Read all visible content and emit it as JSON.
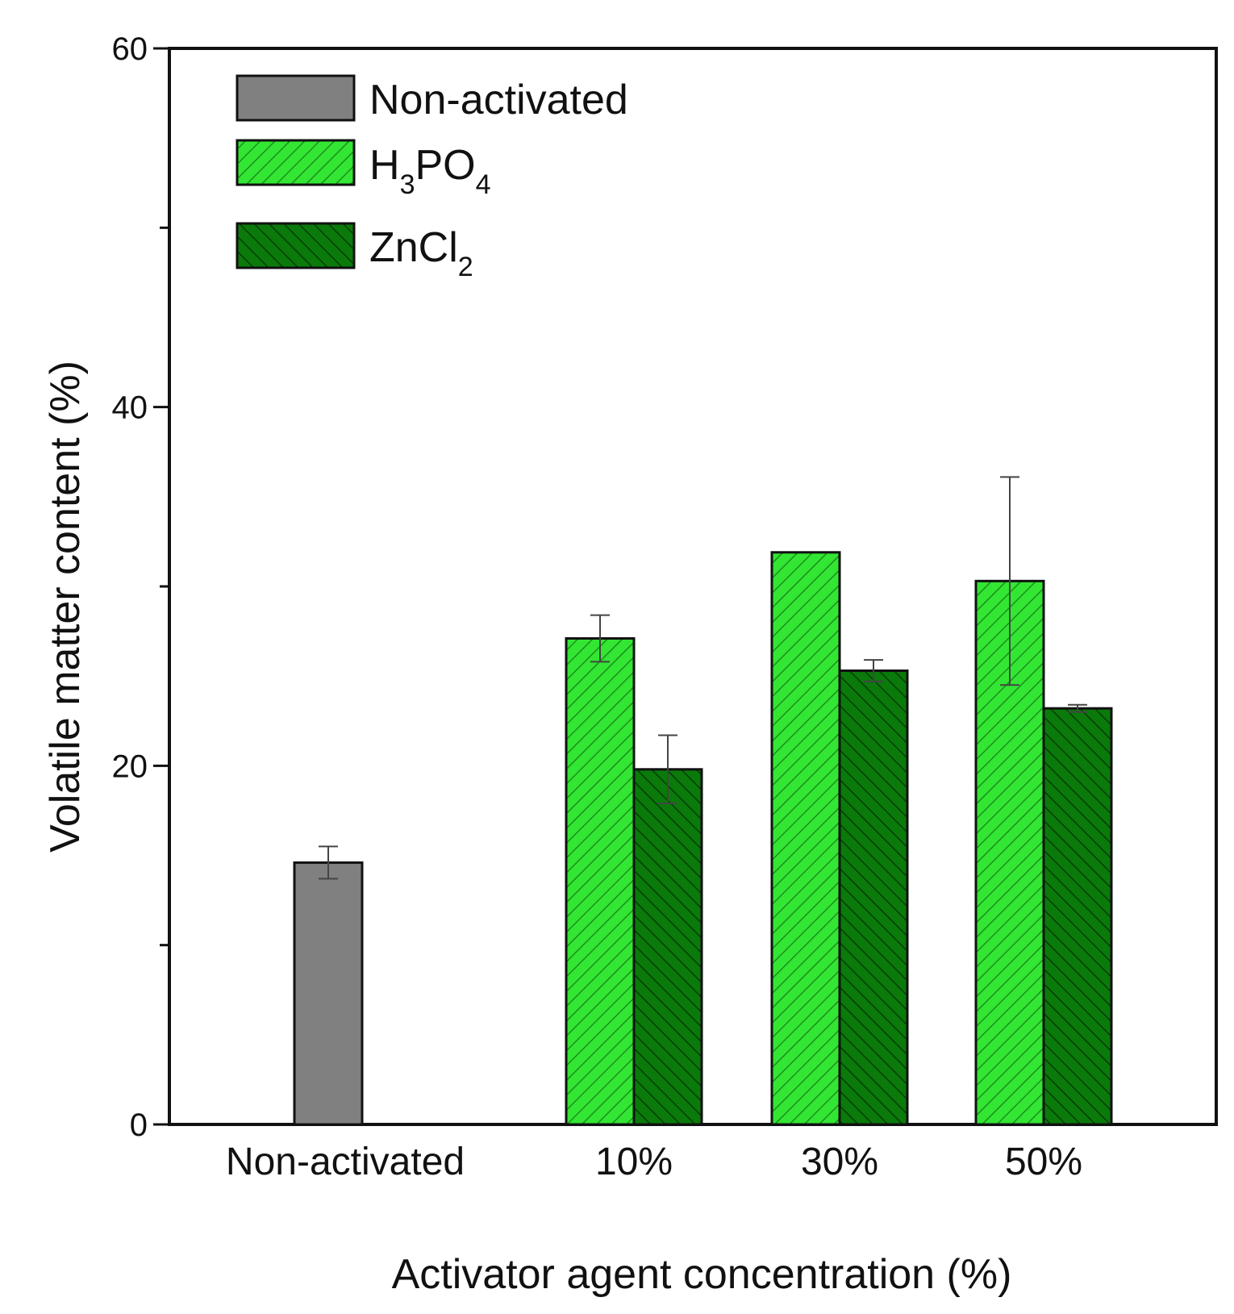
{
  "chart_data": {
    "type": "bar",
    "title": "",
    "xlabel": "Activator agent concentration (%)",
    "ylabel": "Volatile matter content (%)",
    "ylim": [
      0,
      60
    ],
    "yticks": [
      0,
      20,
      40,
      60
    ],
    "categories": [
      "Non-activated",
      "10%",
      "30%",
      "50%"
    ],
    "grid": false,
    "legend_position": "top-left",
    "series": [
      {
        "name": "Non-activated",
        "label_main": "Non-activated",
        "color": "#808080",
        "pattern": "none",
        "values": [
          14.6,
          null,
          null,
          null
        ],
        "errors": [
          0.9,
          null,
          null,
          null
        ]
      },
      {
        "name": "H3PO4",
        "label_parts": [
          "H",
          "3",
          "PO",
          "4"
        ],
        "color": "#33e633",
        "pattern": "hatch-forward",
        "values": [
          null,
          27.1,
          31.9,
          30.3
        ],
        "errors": [
          null,
          1.3,
          null,
          5.8
        ]
      },
      {
        "name": "ZnCl2",
        "label_parts": [
          "ZnCl",
          "2"
        ],
        "color": "#0a7a0a",
        "pattern": "hatch-back",
        "values": [
          null,
          19.8,
          25.3,
          23.2
        ],
        "errors": [
          null,
          1.9,
          0.6,
          0.2
        ]
      }
    ]
  }
}
